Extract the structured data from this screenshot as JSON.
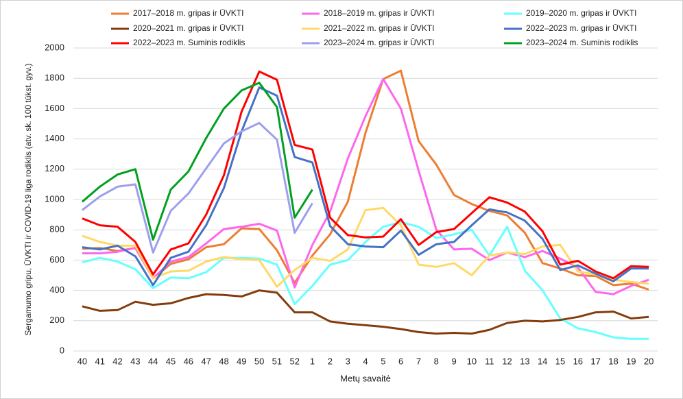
{
  "chart_data": {
    "type": "line",
    "y_label": "Sergamumo gripu, ŪVKTI ir COVID-19 liga rodiklis (atv. sk. 100 tūkst. gyv.)",
    "x_label": "Metų savaitė",
    "categories": [
      "40",
      "41",
      "42",
      "43",
      "44",
      "45",
      "46",
      "47",
      "48",
      "49",
      "50",
      "51",
      "52",
      "1",
      "2",
      "3",
      "4",
      "5",
      "6",
      "7",
      "8",
      "9",
      "10",
      "11",
      "12",
      "13",
      "14",
      "15",
      "16",
      "17",
      "18",
      "19",
      "20"
    ],
    "ylim": [
      0,
      2000
    ],
    "yticks": [
      0,
      200,
      400,
      600,
      800,
      1000,
      1200,
      1400,
      1600,
      1800,
      2000
    ],
    "grid": true,
    "legend": "top",
    "series": [
      {
        "name": "2017–2018 m. gripas ir ŪVKTI",
        "color": "#ed7d31",
        "values": [
          675,
          680,
          660,
          680,
          480,
          575,
          605,
          685,
          705,
          810,
          805,
          665,
          450,
          630,
          770,
          985,
          1440,
          1795,
          1850,
          1385,
          1230,
          1030,
          970,
          925,
          895,
          780,
          580,
          545,
          500,
          495,
          435,
          445,
          405
        ]
      },
      {
        "name": "2018–2019 m. gripas ir ŪVKTI",
        "color": "#ff66ee",
        "values": [
          645,
          645,
          655,
          680,
          480,
          590,
          620,
          710,
          805,
          820,
          840,
          795,
          420,
          700,
          920,
          1270,
          1550,
          1795,
          1600,
          1190,
          800,
          670,
          675,
          600,
          650,
          620,
          660,
          610,
          550,
          390,
          375,
          430,
          470
        ]
      },
      {
        "name": "2019–2020 m. gripas ir ŪVKTI",
        "color": "#66ffff",
        "values": [
          585,
          615,
          590,
          540,
          415,
          485,
          480,
          520,
          615,
          615,
          610,
          570,
          310,
          430,
          570,
          600,
          720,
          820,
          850,
          820,
          745,
          770,
          800,
          630,
          820,
          530,
          400,
          215,
          150,
          125,
          90,
          80,
          80
        ]
      },
      {
        "name": "2020–2021 m. gripas ir ŪVKTI",
        "color": "#843c0c",
        "values": [
          295,
          265,
          270,
          325,
          305,
          315,
          350,
          375,
          370,
          360,
          400,
          385,
          255,
          255,
          195,
          180,
          170,
          160,
          145,
          125,
          115,
          120,
          115,
          140,
          185,
          200,
          195,
          205,
          225,
          255,
          260,
          215,
          225
        ]
      },
      {
        "name": "2021–2022 m. gripas ir ŪVKTI",
        "color": "#ffd966",
        "values": [
          760,
          720,
          695,
          695,
          480,
          525,
          530,
          590,
          620,
          605,
          600,
          425,
          535,
          615,
          595,
          670,
          930,
          945,
          830,
          570,
          555,
          580,
          500,
          630,
          650,
          640,
          690,
          700,
          525,
          505,
          470,
          455,
          445
        ]
      },
      {
        "name": "2022–2023 m. gripas ir ŪVKTI",
        "color": "#4472c4",
        "values": [
          685,
          670,
          695,
          625,
          435,
          615,
          655,
          830,
          1075,
          1450,
          1740,
          1685,
          1280,
          1245,
          825,
          705,
          690,
          685,
          795,
          635,
          705,
          720,
          830,
          935,
          915,
          860,
          740,
          535,
          565,
          510,
          460,
          545,
          545
        ]
      },
      {
        "name": "2022–2023 m. Suminis rodiklis",
        "color": "#ff0000",
        "values": [
          875,
          830,
          820,
          720,
          505,
          670,
          710,
          900,
          1160,
          1580,
          1845,
          1790,
          1360,
          1330,
          880,
          765,
          750,
          755,
          870,
          700,
          785,
          805,
          910,
          1015,
          980,
          920,
          790,
          570,
          595,
          525,
          480,
          560,
          555
        ]
      },
      {
        "name": "2023–2024 m. gripas ir ŪVKTI",
        "color": "#9e9ef0",
        "values": [
          930,
          1020,
          1085,
          1100,
          650,
          925,
          1040,
          1205,
          1370,
          1450,
          1505,
          1395,
          780,
          975,
          null,
          null,
          null,
          null,
          null,
          null,
          null,
          null,
          null,
          null,
          null,
          null,
          null,
          null,
          null,
          null,
          null,
          null,
          null
        ]
      },
      {
        "name": "2023–2024 m. Suminis rodiklis",
        "color": "#00a020",
        "values": [
          985,
          1085,
          1165,
          1200,
          735,
          1065,
          1185,
          1405,
          1600,
          1720,
          1770,
          1610,
          880,
          1065,
          null,
          null,
          null,
          null,
          null,
          null,
          null,
          null,
          null,
          null,
          null,
          null,
          null,
          null,
          null,
          null,
          null,
          null,
          null
        ]
      }
    ]
  }
}
